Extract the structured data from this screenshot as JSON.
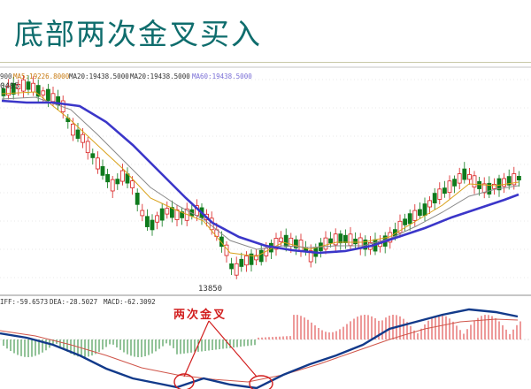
{
  "slide": {
    "title": "底部两次金叉买入"
  },
  "indicators": {
    "ma_cut": "900",
    "ma5_label": "MA5:19226.8000",
    "ma20_label": "MA20:19438.5000",
    "ma20b_label": "MA20:19438.5000",
    "ma60_label": "MA60:19438.5000",
    "high_label": "0495",
    "low_label": "13850",
    "macd_diff_label": "IFF:-59.6573",
    "macd_dea_label": "DEA:-28.5027",
    "macd_label": "MACD:-62.3092"
  },
  "annotation": {
    "text": "两次金叉"
  },
  "colors": {
    "up": "#d81e1e",
    "down": "#0e7a1c",
    "ma_long": "#3b36c9",
    "ma_mid": "#8a8a8a",
    "ma_short": "#d9a21a",
    "dif": "#123a8a",
    "dea": "#d0554a",
    "highlight": "#d21e1e"
  }
}
